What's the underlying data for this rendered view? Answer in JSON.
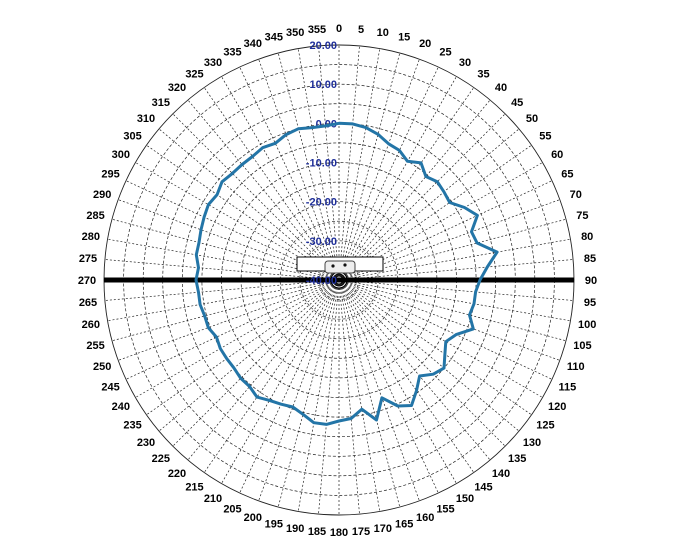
{
  "chart_data": {
    "type": "polar-line",
    "title": "",
    "angle_unit": "degrees",
    "angle_ticks": [
      0,
      5,
      10,
      15,
      20,
      25,
      30,
      35,
      40,
      45,
      50,
      55,
      60,
      65,
      70,
      75,
      80,
      85,
      90,
      95,
      100,
      105,
      110,
      115,
      120,
      125,
      130,
      135,
      140,
      145,
      150,
      155,
      160,
      165,
      170,
      175,
      180,
      185,
      190,
      195,
      200,
      205,
      210,
      215,
      220,
      225,
      230,
      235,
      240,
      245,
      250,
      255,
      260,
      265,
      270,
      275,
      280,
      285,
      290,
      295,
      300,
      305,
      310,
      315,
      320,
      325,
      330,
      335,
      340,
      345,
      350,
      355
    ],
    "radial_ticks": [
      "20.00",
      "10.00",
      "0.00",
      "-10.00",
      "-20.00",
      "-30.00",
      "-40.00"
    ],
    "radial_range": [
      -40,
      20
    ],
    "grid": true,
    "colors": {
      "series": "#2375a7",
      "radial_labels": "#1f2f9a",
      "axis_bar": "#000000"
    },
    "series": [
      {
        "angles": [
          0,
          5,
          10,
          15,
          20,
          25,
          30,
          35,
          40,
          45,
          50,
          55,
          60,
          65,
          70,
          75,
          80,
          85,
          90,
          95,
          100,
          105,
          110,
          115,
          120,
          125,
          130,
          135,
          140,
          145,
          150,
          155,
          160,
          165,
          170,
          175,
          180,
          185,
          190,
          195,
          200,
          205,
          210,
          215,
          220,
          225,
          230,
          235,
          240,
          245,
          250,
          255,
          260,
          265,
          270,
          275,
          280,
          285,
          290,
          295,
          300,
          305,
          310,
          315,
          320,
          325,
          330,
          335,
          340,
          345,
          350,
          355
        ],
        "values": [
          0.0,
          0.0,
          -0.5,
          -1.5,
          -3.0,
          -3.5,
          -5.0,
          -3.5,
          -5.5,
          -4.5,
          -5.0,
          -5.5,
          -3.0,
          -1.0,
          -4.0,
          -3.5,
          1.0,
          -2.0,
          -4.0,
          -5.0,
          -5.0,
          -5.5,
          -3.5,
          -7.0,
          -8.5,
          -7.0,
          -5.0,
          -6.0,
          -8.0,
          -5.5,
          -3.0,
          -4.5,
          -8.0,
          -3.0,
          -6.5,
          -4.5,
          -4.0,
          -3.0,
          -3.0,
          -4.5,
          -5.5,
          -5.0,
          -4.5,
          -3.5,
          -4.5,
          -4.5,
          -5.0,
          -5.0,
          -5.0,
          -5.5,
          -4.5,
          -4.5,
          -4.0,
          -4.0,
          -3.5,
          -4.0,
          -3.0,
          -3.0,
          -2.5,
          -2.0,
          -1.5,
          -2.0,
          -1.0,
          -1.5,
          -1.5,
          -1.5,
          -1.0,
          -1.5,
          -0.5,
          0.0,
          -0.5,
          -0.5
        ]
      }
    ]
  }
}
